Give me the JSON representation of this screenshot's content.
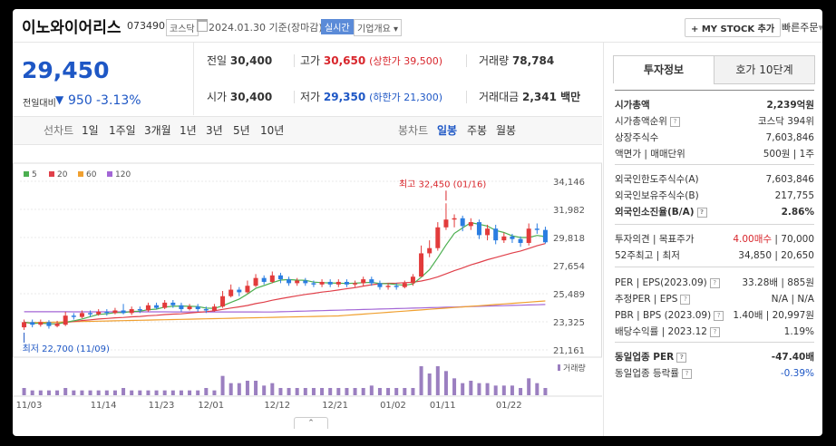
{
  "header": {
    "company_name": "이노와이어리스",
    "ticker": "073490",
    "market": "코스닥",
    "date_text": "2024.01.30 기준(장마감)",
    "realtime_label": "실시간",
    "company_info_label": "기업개요",
    "mystock_label": "+ MY STOCK 추가",
    "quick_order_label": "빠른주문"
  },
  "price": {
    "current": "29,450",
    "change_label": "전일대비",
    "change_amount": "950",
    "change_rate": "-3.13%"
  },
  "quote": {
    "prev_close_label": "전일",
    "prev_close": "30,400",
    "high_label": "고가",
    "high": "30,650",
    "upper_limit": "(상한가 39,500)",
    "volume_label": "거래량",
    "volume": "78,784",
    "open_label": "시가",
    "open": "30,400",
    "low_label": "저가",
    "low": "29,350",
    "lower_limit": "(하한가 21,300)",
    "amount_label": "거래대금",
    "amount": "2,341 백만"
  },
  "periods": {
    "line_chart": "선차트",
    "options": [
      "1일",
      "1주일",
      "3개월",
      "1년",
      "3년",
      "5년",
      "10년"
    ],
    "candle_chart": "봉차트",
    "candle_options": [
      "일봉",
      "주봉",
      "월봉"
    ],
    "active_candle": "일봉"
  },
  "chart_data": {
    "type": "candlestick",
    "legend": [
      {
        "name": "5",
        "color": "#4caf50"
      },
      {
        "name": "20",
        "color": "#e0404a"
      },
      {
        "name": "60",
        "color": "#f0a030"
      },
      {
        "name": "120",
        "color": "#a366d6"
      }
    ],
    "y_ticks": [
      "34,146",
      "31,982",
      "29,818",
      "27,654",
      "25,489",
      "23,325",
      "21,161"
    ],
    "ylim": [
      21161,
      34146
    ],
    "x_ticks": [
      "11/03",
      "11/14",
      "11/23",
      "12/01",
      "12/12",
      "12/21",
      "01/02",
      "01/11",
      "01/22"
    ],
    "high_annotation": "최고 32,450 (01/16)",
    "low_annotation": "최저 22,700 (11/09)",
    "volume_label": "거래량",
    "candles": [
      {
        "o": 22900,
        "c": 23300,
        "h": 23500,
        "l": 22700
      },
      {
        "o": 23300,
        "c": 23100,
        "h": 23500,
        "l": 22900
      },
      {
        "o": 23100,
        "c": 23300,
        "h": 23500,
        "l": 22950
      },
      {
        "o": 23300,
        "c": 23000,
        "h": 23450,
        "l": 22800
      },
      {
        "o": 23000,
        "c": 23200,
        "h": 23400,
        "l": 22900
      },
      {
        "o": 23100,
        "c": 23800,
        "h": 24100,
        "l": 23000
      },
      {
        "o": 23800,
        "c": 23700,
        "h": 24000,
        "l": 23500
      },
      {
        "o": 23700,
        "c": 24000,
        "h": 24200,
        "l": 23600
      },
      {
        "o": 24000,
        "c": 23900,
        "h": 24200,
        "l": 23700
      },
      {
        "o": 23900,
        "c": 24100,
        "h": 24300,
        "l": 23800
      },
      {
        "o": 24100,
        "c": 24000,
        "h": 24300,
        "l": 23800
      },
      {
        "o": 24000,
        "c": 24200,
        "h": 24400,
        "l": 23900
      },
      {
        "o": 24200,
        "c": 24000,
        "h": 24700,
        "l": 23900
      },
      {
        "o": 24000,
        "c": 24300,
        "h": 24500,
        "l": 23850
      },
      {
        "o": 24300,
        "c": 24200,
        "h": 24500,
        "l": 24000
      },
      {
        "o": 24200,
        "c": 24600,
        "h": 24800,
        "l": 24100
      },
      {
        "o": 24600,
        "c": 24400,
        "h": 24800,
        "l": 24300
      },
      {
        "o": 24400,
        "c": 24800,
        "h": 25000,
        "l": 24300
      },
      {
        "o": 24800,
        "c": 24600,
        "h": 25000,
        "l": 24400
      },
      {
        "o": 24600,
        "c": 24300,
        "h": 24800,
        "l": 24100
      },
      {
        "o": 24300,
        "c": 24500,
        "h": 24700,
        "l": 24200
      },
      {
        "o": 24500,
        "c": 24300,
        "h": 24700,
        "l": 24100
      },
      {
        "o": 24300,
        "c": 24200,
        "h": 24500,
        "l": 24000
      },
      {
        "o": 24200,
        "c": 24500,
        "h": 24700,
        "l": 24100
      },
      {
        "o": 24500,
        "c": 25300,
        "h": 25700,
        "l": 24400
      },
      {
        "o": 25300,
        "c": 25800,
        "h": 26200,
        "l": 25200
      },
      {
        "o": 25800,
        "c": 25600,
        "h": 26000,
        "l": 25300
      },
      {
        "o": 25600,
        "c": 26100,
        "h": 26500,
        "l": 25500
      },
      {
        "o": 26100,
        "c": 26700,
        "h": 27000,
        "l": 26000
      },
      {
        "o": 26700,
        "c": 26400,
        "h": 26900,
        "l": 26200
      },
      {
        "o": 26400,
        "c": 26900,
        "h": 27200,
        "l": 26300
      },
      {
        "o": 26900,
        "c": 26600,
        "h": 27100,
        "l": 26300
      },
      {
        "o": 26600,
        "c": 26300,
        "h": 26800,
        "l": 26100
      },
      {
        "o": 26300,
        "c": 26500,
        "h": 26700,
        "l": 26100
      },
      {
        "o": 26500,
        "c": 26300,
        "h": 26700,
        "l": 26100
      },
      {
        "o": 26300,
        "c": 26200,
        "h": 26500,
        "l": 26000
      },
      {
        "o": 26200,
        "c": 26400,
        "h": 26600,
        "l": 26000
      },
      {
        "o": 26400,
        "c": 26200,
        "h": 26600,
        "l": 26000
      },
      {
        "o": 26200,
        "c": 26400,
        "h": 26600,
        "l": 26000
      },
      {
        "o": 26400,
        "c": 26200,
        "h": 26600,
        "l": 26000
      },
      {
        "o": 26200,
        "c": 26300,
        "h": 26500,
        "l": 26000
      },
      {
        "o": 26300,
        "c": 26600,
        "h": 26800,
        "l": 26100
      },
      {
        "o": 26600,
        "c": 26300,
        "h": 26800,
        "l": 26100
      },
      {
        "o": 26300,
        "c": 26000,
        "h": 26500,
        "l": 25800
      },
      {
        "o": 26000,
        "c": 26100,
        "h": 26300,
        "l": 25800
      },
      {
        "o": 26100,
        "c": 26000,
        "h": 26300,
        "l": 25800
      },
      {
        "o": 26000,
        "c": 26300,
        "h": 26500,
        "l": 25900
      },
      {
        "o": 26300,
        "c": 26800,
        "h": 27000,
        "l": 26100
      },
      {
        "o": 26800,
        "c": 28600,
        "h": 29200,
        "l": 26800
      },
      {
        "o": 28600,
        "c": 29000,
        "h": 29600,
        "l": 28300
      },
      {
        "o": 29000,
        "c": 30600,
        "h": 31000,
        "l": 28800
      },
      {
        "o": 30600,
        "c": 31200,
        "h": 32450,
        "l": 30400
      },
      {
        "o": 31200,
        "c": 31300,
        "h": 31600,
        "l": 30600
      },
      {
        "o": 31300,
        "c": 30700,
        "h": 31500,
        "l": 30300
      },
      {
        "o": 30700,
        "c": 31000,
        "h": 31300,
        "l": 30400
      },
      {
        "o": 31000,
        "c": 30000,
        "h": 31200,
        "l": 29700
      },
      {
        "o": 30000,
        "c": 30500,
        "h": 30800,
        "l": 29600
      },
      {
        "o": 30500,
        "c": 29600,
        "h": 30800,
        "l": 29300
      },
      {
        "o": 29600,
        "c": 29900,
        "h": 30200,
        "l": 29400
      },
      {
        "o": 29900,
        "c": 29700,
        "h": 30100,
        "l": 29400
      },
      {
        "o": 29700,
        "c": 29400,
        "h": 29900,
        "l": 29100
      },
      {
        "o": 29400,
        "c": 30500,
        "h": 30900,
        "l": 29200
      },
      {
        "o": 30500,
        "c": 30400,
        "h": 30900,
        "l": 30100
      },
      {
        "o": 30400,
        "c": 29450,
        "h": 30650,
        "l": 29350
      }
    ],
    "volumes": [
      3,
      2,
      2,
      2,
      2,
      3,
      2,
      2,
      2,
      2,
      2,
      2,
      3,
      2,
      2,
      2,
      2,
      2,
      2,
      2,
      2,
      2,
      3,
      2,
      8,
      5,
      5,
      6,
      6,
      4,
      5,
      3,
      3,
      3,
      3,
      3,
      3,
      3,
      3,
      3,
      3,
      3,
      4,
      3,
      3,
      3,
      3,
      3,
      12,
      9,
      12,
      10,
      7,
      5,
      6,
      5,
      5,
      4,
      4,
      4,
      3,
      7,
      5,
      3
    ]
  },
  "sidebar": {
    "tab_invest": "투자정보",
    "tab_hoga": "호가 10단계",
    "rows1": [
      {
        "label": "시가총액",
        "value": "2,239억원",
        "bold": true
      },
      {
        "label": "시가총액순위",
        "value": "코스닥 394위",
        "help": true
      },
      {
        "label": "상장주식수",
        "value": "7,603,846"
      },
      {
        "label": "액면가 | 매매단위",
        "value": "500원 | 1주"
      }
    ],
    "rows2": [
      {
        "label": "외국인한도주식수(A)",
        "value": "7,603,846"
      },
      {
        "label": "외국인보유주식수(B)",
        "value": "217,755"
      },
      {
        "label": "외국인소진율(B/A)",
        "value": "2.86%",
        "help": true,
        "bold": true
      }
    ],
    "rows3": [
      {
        "label": "투자의견 | 목표주가",
        "value_red": "4.00매수",
        "value": " | 70,000"
      },
      {
        "label": "52주최고 | 최저",
        "value": "34,850 | 20,650"
      }
    ],
    "rows4": [
      {
        "label": "PER | EPS(2023.09)",
        "value": "33.28배 | 885원",
        "help": true
      },
      {
        "label": "추정PER | EPS",
        "value": "N/A | N/A",
        "help": true
      },
      {
        "label": "PBR | BPS (2023.09)",
        "value": "1.40배 | 20,997원",
        "help": true
      },
      {
        "label": "배당수익률 | 2023.12",
        "value": "1.19%",
        "help": true
      }
    ],
    "rows5": [
      {
        "label": "동일업종 PER",
        "value": "-47.40배",
        "help": true,
        "bold": true
      },
      {
        "label": "동일업종 등락률",
        "value": "-0.39%",
        "help": true,
        "blue": true
      }
    ]
  }
}
